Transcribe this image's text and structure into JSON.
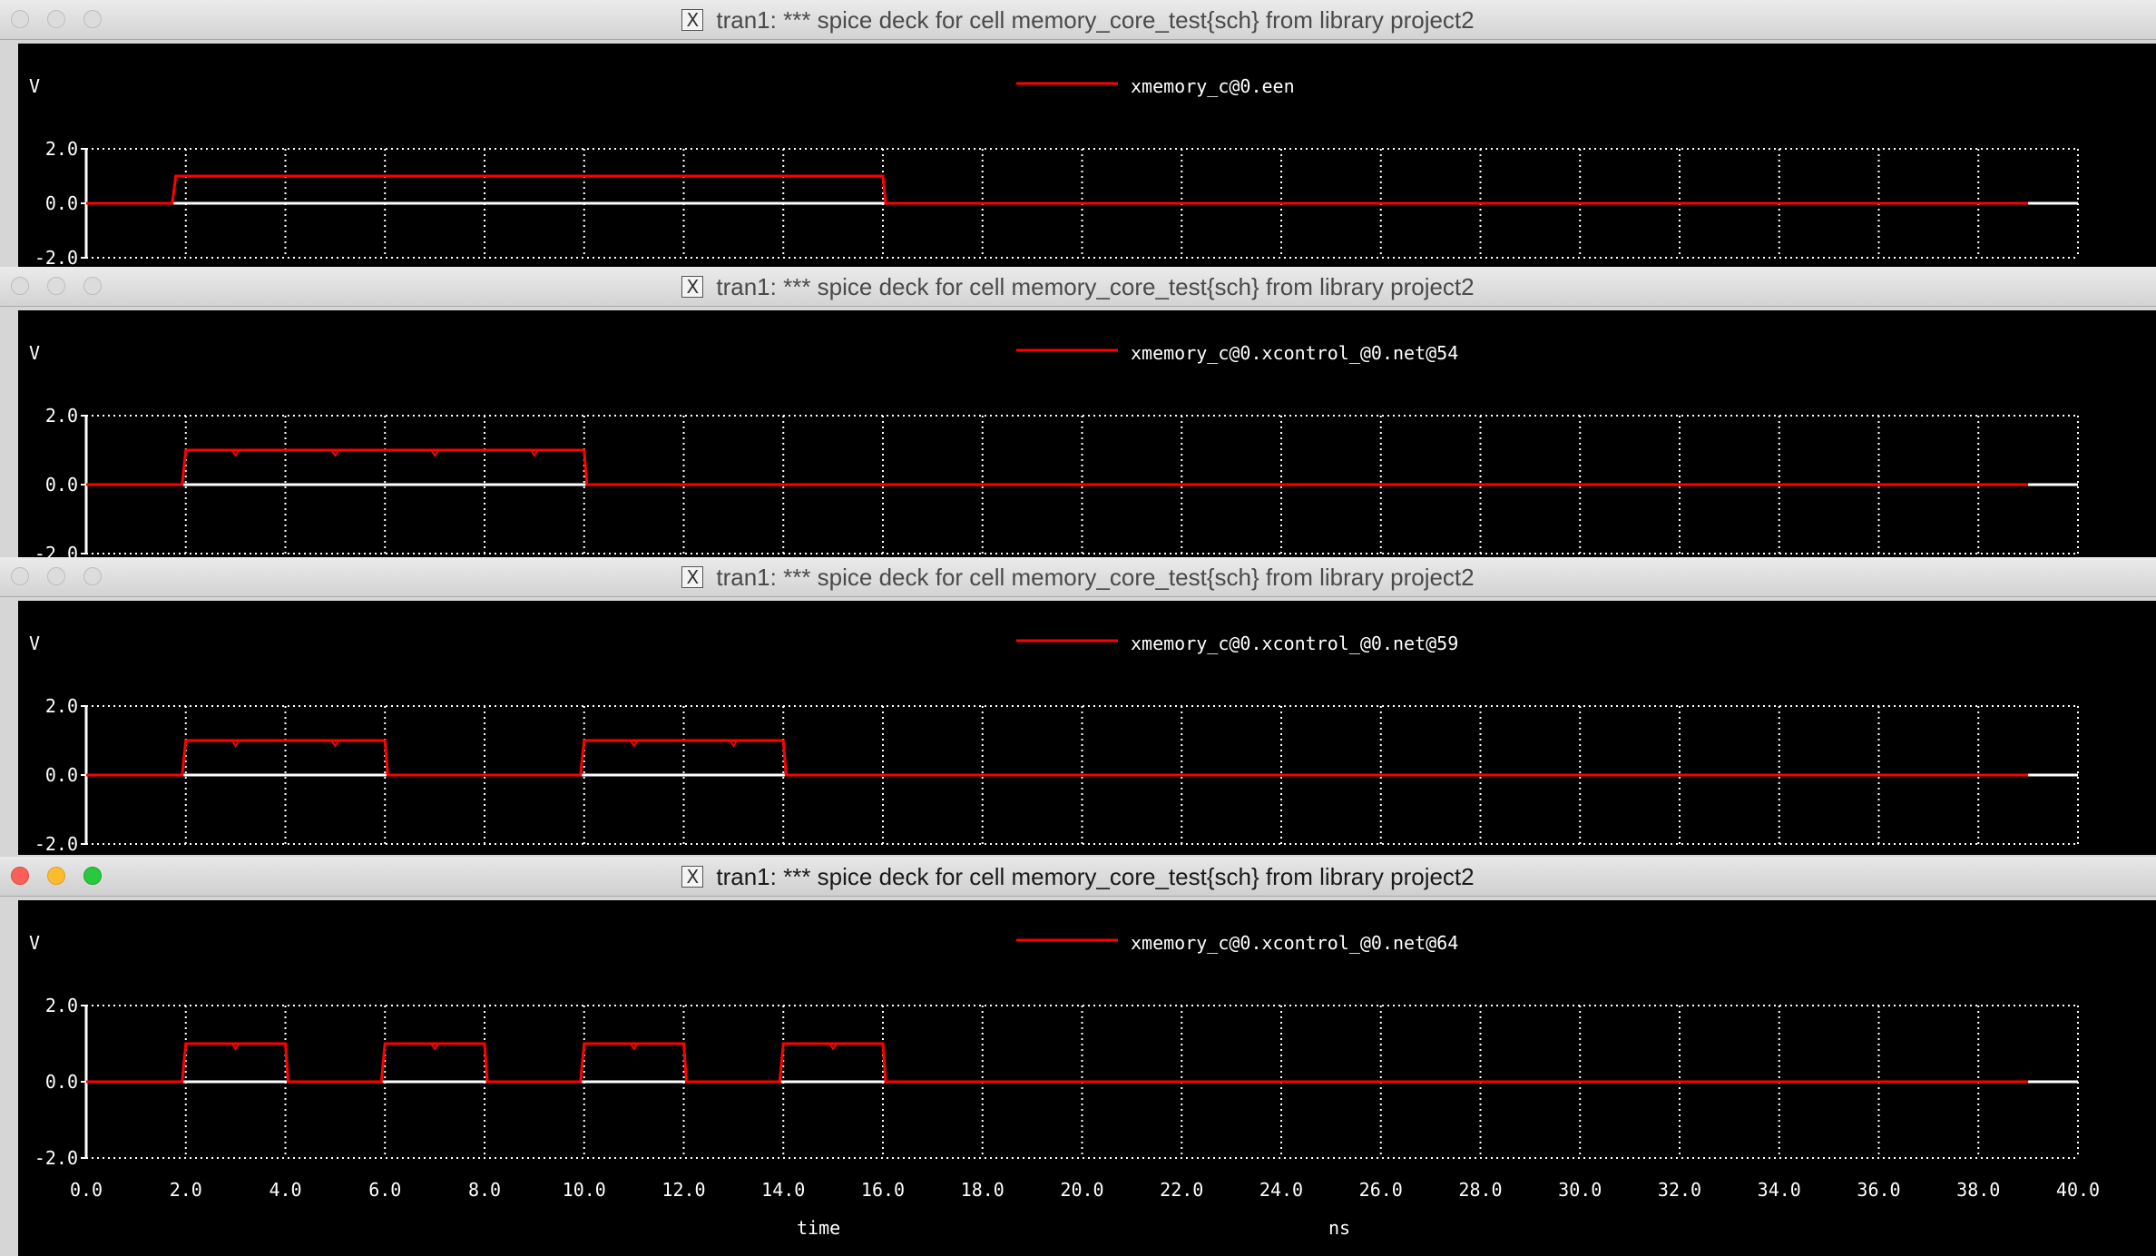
{
  "windows": [
    {
      "title": "tran1: *** spice deck for cell memory_core_test{sch} from library project2",
      "active": false,
      "plot": {
        "y_unit": "V",
        "legend": "xmemory_c@0.een",
        "y_ticks": [
          "2.0",
          "0.0",
          "-2.0"
        ],
        "signal_pulses": [
          [
            1.8,
            16.0
          ]
        ],
        "glitches": []
      }
    },
    {
      "title": "tran1: *** spice deck for cell memory_core_test{sch} from library project2",
      "active": false,
      "plot": {
        "y_unit": "V",
        "legend": "xmemory_c@0.xcontrol_@0.net@54",
        "y_ticks": [
          "2.0",
          "0.0",
          "-2.0"
        ],
        "signal_pulses": [
          [
            2.0,
            10.0
          ]
        ],
        "glitches": [
          3.0,
          5.0,
          7.0,
          9.0
        ]
      }
    },
    {
      "title": "tran1: *** spice deck for cell memory_core_test{sch} from library project2",
      "active": false,
      "plot": {
        "y_unit": "V",
        "legend": "xmemory_c@0.xcontrol_@0.net@59",
        "y_ticks": [
          "2.0",
          "0.0",
          "-2.0"
        ],
        "signal_pulses": [
          [
            2.0,
            6.0
          ],
          [
            10.0,
            14.0
          ]
        ],
        "glitches": [
          3.0,
          5.0,
          11.0,
          13.0
        ]
      }
    },
    {
      "title": "tran1: *** spice deck for cell memory_core_test{sch} from library project2",
      "active": true,
      "plot": {
        "y_unit": "V",
        "legend": "xmemory_c@0.xcontrol_@0.net@64",
        "y_ticks": [
          "2.0",
          "0.0",
          "-2.0"
        ],
        "x_ticks": [
          "0.0",
          "2.0",
          "4.0",
          "6.0",
          "8.0",
          "10.0",
          "12.0",
          "14.0",
          "16.0",
          "18.0",
          "20.0",
          "22.0",
          "24.0",
          "26.0",
          "28.0",
          "30.0",
          "32.0",
          "34.0",
          "36.0",
          "38.0",
          "40.0"
        ],
        "x_label": "time",
        "x_unit": "ns",
        "signal_pulses": [
          [
            2.0,
            4.0
          ],
          [
            6.0,
            8.0
          ],
          [
            10.0,
            12.0
          ],
          [
            14.0,
            16.0
          ]
        ],
        "glitches": [
          3.0,
          7.0,
          11.0,
          15.0
        ]
      }
    }
  ],
  "chart_data": {
    "type": "line",
    "x_range": [
      0,
      40
    ],
    "y_range": [
      -2,
      2
    ],
    "signal_high": 1.0,
    "signal_end": 39.0,
    "series": [
      {
        "name": "xmemory_c@0.een",
        "high_intervals": [
          [
            1.8,
            16.0
          ]
        ]
      },
      {
        "name": "xmemory_c@0.xcontrol_@0.net@54",
        "high_intervals": [
          [
            2.0,
            10.0
          ]
        ]
      },
      {
        "name": "xmemory_c@0.xcontrol_@0.net@59",
        "high_intervals": [
          [
            2.0,
            6.0
          ],
          [
            10.0,
            14.0
          ]
        ]
      },
      {
        "name": "xmemory_c@0.xcontrol_@0.net@64",
        "high_intervals": [
          [
            2.0,
            4.0
          ],
          [
            6.0,
            8.0
          ],
          [
            10.0,
            12.0
          ],
          [
            14.0,
            16.0
          ]
        ]
      }
    ],
    "colors": {
      "signal": "#ff0000",
      "axis": "#ffffff",
      "background": "#000000"
    }
  }
}
